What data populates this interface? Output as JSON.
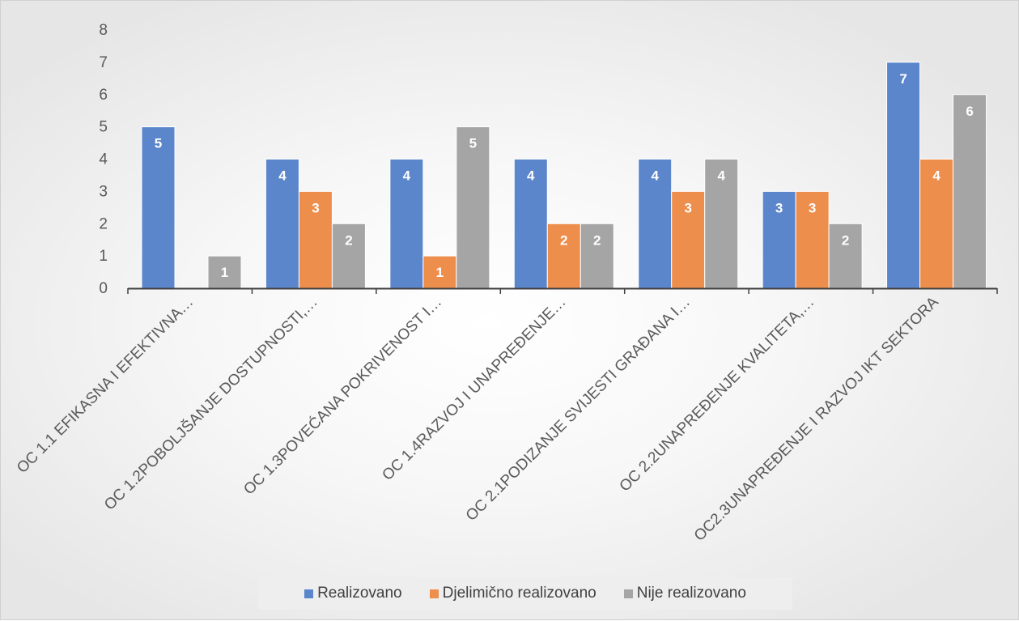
{
  "chart_data": {
    "type": "bar",
    "categories": [
      "OC 1.1 EFIKASNA I EFEKTIVNA…",
      "OC 1.2POBOLJŠANJE DOSTUPNOSTI,…",
      "OC 1.3POVEĆANA POKRIVENOST I…",
      "OC 1.4RAZVOJ I UNAPREĐENJE…",
      "OC 2.1PODIZANJE SVIJESTI GRAĐANA I…",
      "OC 2.2UNAPREĐENJE KVALITETA,…",
      "OC2.3UNAPREĐENJE I RAZVOJ IKT SEKTORA"
    ],
    "series": [
      {
        "name": "Realizovano",
        "color": "#5b86cc",
        "values": [
          5,
          4,
          4,
          4,
          4,
          3,
          7
        ]
      },
      {
        "name": "Djelimično realizovano",
        "color": "#ee8e4d",
        "values": [
          null,
          3,
          1,
          2,
          3,
          3,
          4
        ]
      },
      {
        "name": "Nije realizovano",
        "color": "#a5a5a5",
        "values": [
          1,
          2,
          5,
          2,
          4,
          2,
          6
        ]
      }
    ],
    "ylim": [
      0,
      8
    ],
    "yticks": [
      0,
      1,
      2,
      3,
      4,
      5,
      6,
      7,
      8
    ],
    "grid": false,
    "data_labels": true,
    "legend_position": "bottom"
  }
}
